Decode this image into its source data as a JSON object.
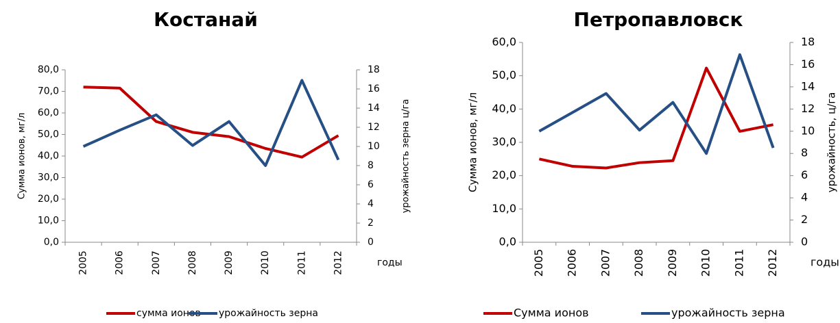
{
  "chart_data": [
    {
      "type": "line",
      "title": "Костанай",
      "x_label": "годы",
      "y_label": "Сумма ионов, мг/л",
      "y2_label": "урожайность зерна ц/га",
      "categories": [
        "2005",
        "2006",
        "2007",
        "2008",
        "2009",
        "2010",
        "2011",
        "2012"
      ],
      "series": [
        {
          "name": "сумма ионов",
          "color": "#c00000",
          "values": [
            72,
            71.5,
            56,
            51,
            49,
            43.5,
            39.5,
            49.5
          ]
        },
        {
          "name": "урожайность зерна",
          "color": "#254f85",
          "axis": "y2",
          "values": [
            10,
            11.7,
            13.3,
            10.1,
            12.6,
            8,
            16.9,
            8.6
          ]
        }
      ],
      "ylim": [
        0,
        80
      ],
      "yticks": [
        {
          "value": 0,
          "label": "0,0"
        },
        {
          "value": 10,
          "label": "10,0"
        },
        {
          "value": 20,
          "label": "20,0"
        },
        {
          "value": 30,
          "label": "30,0"
        },
        {
          "value": 40,
          "label": "40,0"
        },
        {
          "value": 50,
          "label": "50,0"
        },
        {
          "value": 60,
          "label": "60,0"
        },
        {
          "value": 70,
          "label": "70,0"
        },
        {
          "value": 80,
          "label": "80,0"
        }
      ],
      "y2lim": [
        0,
        18
      ],
      "y2ticks": [
        0,
        2,
        4,
        6,
        8,
        10,
        12,
        14,
        16,
        18
      ]
    },
    {
      "type": "line",
      "title": "Петропавловск",
      "x_label": "годы",
      "y_label": "Сумма ионов, мг/л",
      "y2_label": "урожайность, ц/га",
      "categories": [
        "2005",
        "2006",
        "2007",
        "2008",
        "2009",
        "2010",
        "2011",
        "2012"
      ],
      "series": [
        {
          "name": "Сумма ионов",
          "color": "#c00000",
          "values": [
            25,
            22.8,
            22.3,
            23.9,
            24.5,
            52.3,
            33.3,
            35.3
          ]
        },
        {
          "name": "урожайность зерна",
          "color": "#254f85",
          "axis": "y2",
          "values": [
            10,
            11.7,
            13.4,
            10.1,
            12.6,
            8,
            16.9,
            8.5
          ]
        }
      ],
      "ylim": [
        0,
        60
      ],
      "yticks": [
        {
          "value": 0,
          "label": "0,0"
        },
        {
          "value": 10,
          "label": "10,0"
        },
        {
          "value": 20,
          "label": "20,0"
        },
        {
          "value": 30,
          "label": "30,0"
        },
        {
          "value": 40,
          "label": "40,0"
        },
        {
          "value": 50,
          "label": "50,0"
        },
        {
          "value": 60,
          "label": "60,0"
        }
      ],
      "y2lim": [
        0,
        18
      ],
      "y2ticks": [
        0,
        2,
        4,
        6,
        8,
        10,
        12,
        14,
        16,
        18
      ]
    }
  ]
}
